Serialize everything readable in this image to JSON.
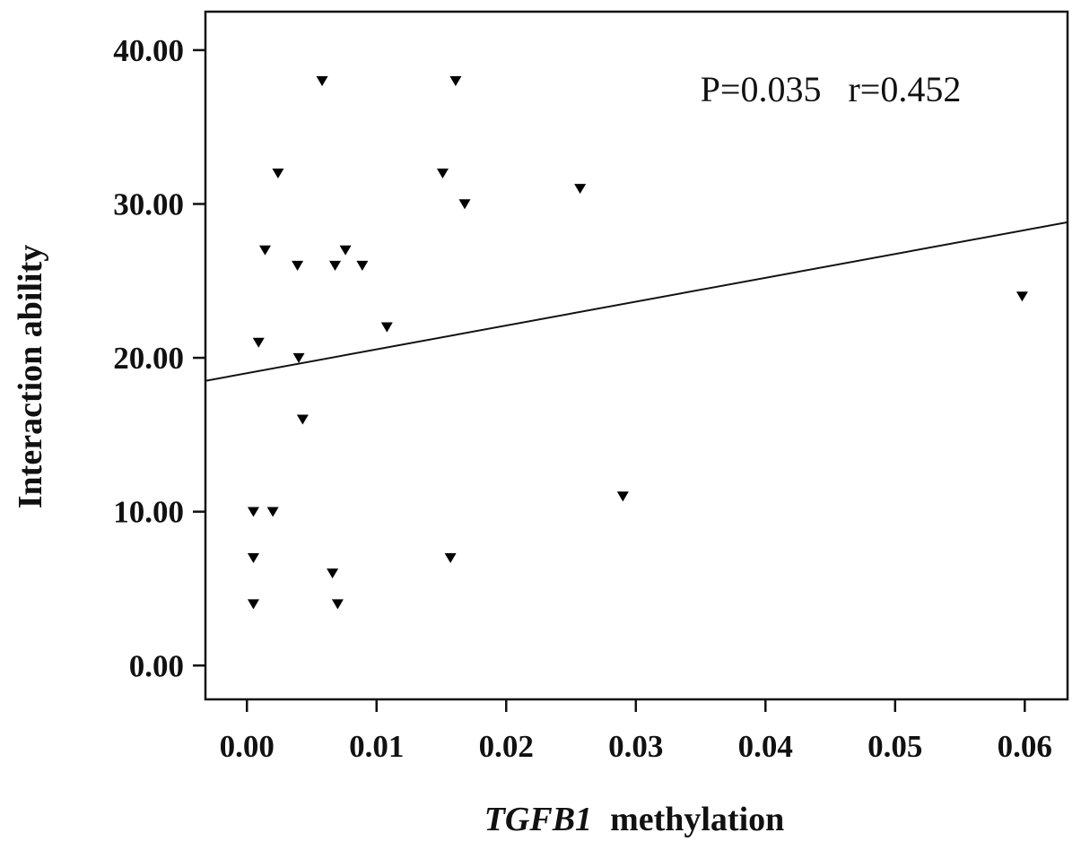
{
  "chart_data": {
    "type": "scatter",
    "title": "",
    "xlabel_italic": "TGFB1",
    "xlabel_rest": "methylation",
    "ylabel": "Interaction ability",
    "xlim": [
      -0.0032,
      0.0633
    ],
    "ylim": [
      -2.2,
      42.5
    ],
    "x_ticks": [
      0.0,
      0.01,
      0.02,
      0.03,
      0.04,
      0.05,
      0.06
    ],
    "x_tick_labels": [
      "0.00",
      "0.01",
      "0.02",
      "0.03",
      "0.04",
      "0.05",
      "0.06"
    ],
    "y_ticks": [
      0,
      10,
      20,
      30,
      40
    ],
    "y_tick_labels": [
      "0.00",
      "10.00",
      "20.00",
      "30.00",
      "40.00"
    ],
    "grid": false,
    "marker": "down-triangle",
    "color": "#000000",
    "points": [
      {
        "x": 0.0058,
        "y": 38
      },
      {
        "x": 0.0161,
        "y": 38
      },
      {
        "x": 0.0024,
        "y": 32
      },
      {
        "x": 0.0151,
        "y": 32
      },
      {
        "x": 0.0168,
        "y": 30
      },
      {
        "x": 0.0257,
        "y": 31
      },
      {
        "x": 0.0014,
        "y": 27
      },
      {
        "x": 0.0076,
        "y": 27
      },
      {
        "x": 0.0039,
        "y": 26
      },
      {
        "x": 0.0068,
        "y": 26
      },
      {
        "x": 0.0089,
        "y": 26
      },
      {
        "x": 0.0108,
        "y": 22
      },
      {
        "x": 0.0009,
        "y": 21
      },
      {
        "x": 0.004,
        "y": 20
      },
      {
        "x": 0.0043,
        "y": 16
      },
      {
        "x": 0.0598,
        "y": 24
      },
      {
        "x": 0.0005,
        "y": 10
      },
      {
        "x": 0.002,
        "y": 10
      },
      {
        "x": 0.029,
        "y": 11
      },
      {
        "x": 0.0005,
        "y": 7
      },
      {
        "x": 0.0157,
        "y": 7
      },
      {
        "x": 0.0066,
        "y": 6
      },
      {
        "x": 0.0005,
        "y": 4
      },
      {
        "x": 0.007,
        "y": 4
      }
    ],
    "fit_line": {
      "intercept": 19.0,
      "slope": 155.0
    },
    "annotation": "P=0.035   r=0.452"
  }
}
